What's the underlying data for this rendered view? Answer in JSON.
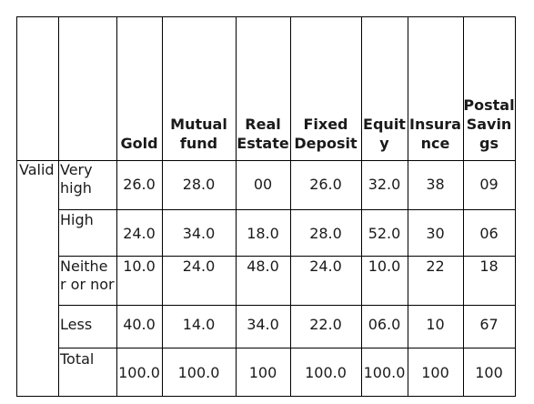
{
  "table": {
    "group_label": "Valid",
    "headers": [
      {
        "l1": "",
        "l2": "",
        "l3": "Gold"
      },
      {
        "l1": "",
        "l2": "Mutual",
        "l3": "fund"
      },
      {
        "l1": "",
        "l2": "Real",
        "l3": "Estate"
      },
      {
        "l1": "",
        "l2": "Fixed",
        "l3": "Deposit"
      },
      {
        "l1": "",
        "l2": "Equit",
        "l3": "y"
      },
      {
        "l1": "",
        "l2": "Insura",
        "l3": "nce"
      },
      {
        "l1": "Postal",
        "l2": "Savin",
        "l3": "gs"
      }
    ],
    "rows": [
      {
        "l1": "Very",
        "l2": "high",
        "values": [
          "26.0",
          "28.0",
          "00",
          "26.0",
          "32.0",
          "38",
          "09"
        ]
      },
      {
        "l1": "High",
        "l2": "",
        "values": [
          "24.0",
          "34.0",
          "18.0",
          "28.0",
          "52.0",
          "30",
          "06"
        ]
      },
      {
        "l1": "Neithe",
        "l2": "r or nor",
        "values": [
          "10.0",
          "24.0",
          "48.0",
          "24.0",
          "10.0",
          "22",
          "18"
        ]
      },
      {
        "l1": "Less",
        "l2": "",
        "values": [
          "40.0",
          "14.0",
          "34.0",
          "22.0",
          "06.0",
          "10",
          "67"
        ]
      },
      {
        "l1": "Total",
        "l2": "",
        "values": [
          "100.0",
          "100.0",
          "100",
          "100.0",
          "100.0",
          "100",
          "100"
        ]
      }
    ]
  }
}
